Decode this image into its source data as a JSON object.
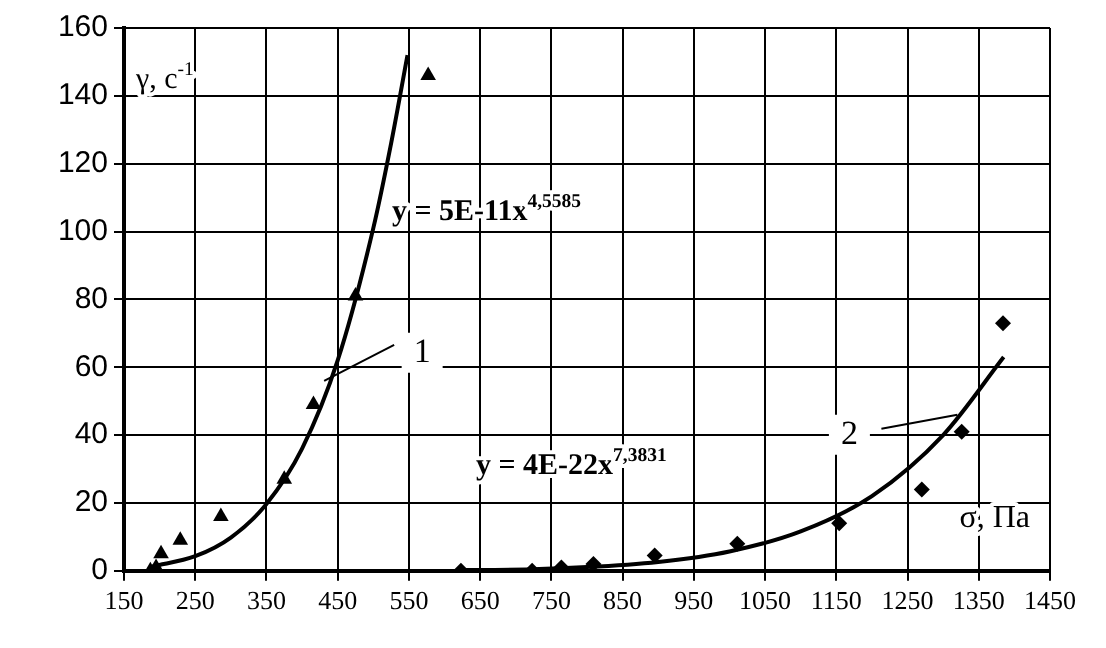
{
  "chart_data": {
    "type": "scatter",
    "xlabel": "σ, Па",
    "ylabel": "γ, с$^{-1}$",
    "xlim": [
      150,
      1450
    ],
    "xticks": [
      150,
      250,
      350,
      450,
      550,
      650,
      750,
      850,
      950,
      1050,
      1150,
      1250,
      1350,
      1450
    ],
    "ylim": [
      0,
      160
    ],
    "yticks": [
      0,
      20,
      40,
      60,
      80,
      100,
      120,
      140,
      160
    ],
    "grid": true,
    "legend": false,
    "series": [
      {
        "color": "#000000",
        "marker": "triangle",
        "x": [
          187,
          195,
          202,
          229,
          286,
          375,
          416,
          475,
          577
        ],
        "values": [
          0,
          1,
          5,
          9,
          16,
          27,
          49,
          81,
          146
        ]
      },
      {
        "color": "#000000",
        "marker": "diamond",
        "x": [
          623,
          723,
          764,
          809,
          895,
          1011,
          1154,
          1270,
          1326,
          1384
        ],
        "values": [
          0,
          0,
          1,
          2,
          4.5,
          8,
          14,
          24,
          41,
          73
        ]
      },
      {
        "type": "line",
        "color": "#000000",
        "marker": "none",
        "line_style": "solid",
        "x": [
          190,
          250,
          300,
          350,
          400,
          450,
          500,
          525,
          548
        ],
        "values": [
          1.3,
          4.3,
          9.8,
          19.7,
          36,
          62,
          101,
          126,
          152
        ]
      },
      {
        "type": "line",
        "color": "#000000",
        "marker": "none",
        "line_style": "solid",
        "x": [
          620,
          650,
          800,
          900,
          1000,
          1100,
          1200,
          1300,
          1385
        ],
        "values": [
          0.2,
          0.2,
          1.1,
          2.6,
          5.7,
          11.6,
          22,
          40,
          63
        ]
      }
    ],
    "annotations": [
      "y = 5E-11x$^{4,5585}$",
      "y = 4E-22x$^{7,3831}$",
      {
        "text": "1",
        "x": 431,
        "y": 56
      },
      {
        "text": "2",
        "x": 1320,
        "y": 46
      }
    ]
  }
}
